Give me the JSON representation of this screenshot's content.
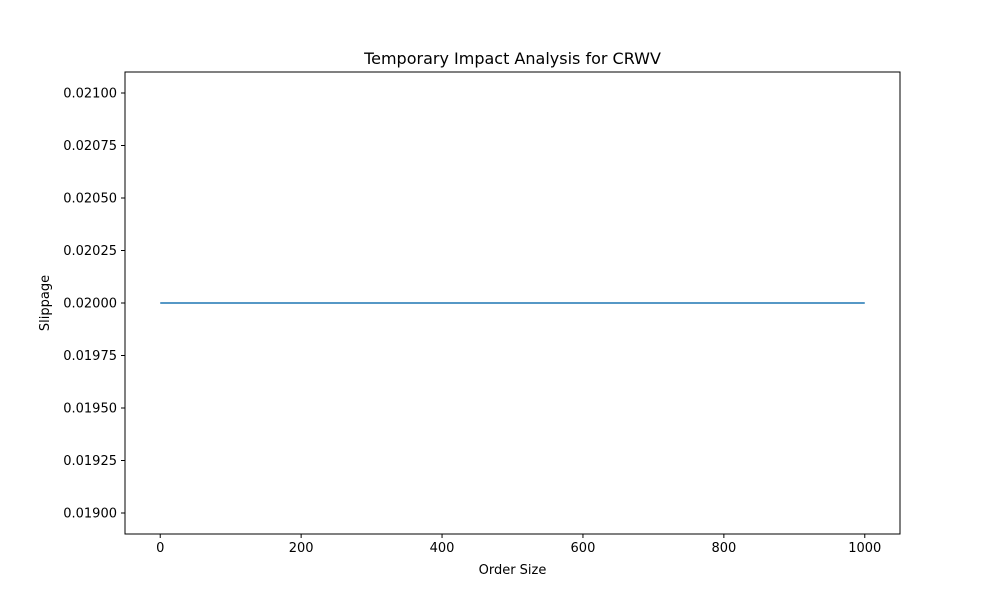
{
  "chart_data": {
    "type": "line",
    "title": "Temporary Impact Analysis for CRWV",
    "xlabel": "Order Size",
    "ylabel": "Slippage",
    "xlim": [
      -50,
      1050
    ],
    "ylim": [
      0.0189,
      0.0211
    ],
    "x_ticks": [
      0,
      200,
      400,
      600,
      800,
      1000
    ],
    "x_tick_labels": [
      "0",
      "200",
      "400",
      "600",
      "800",
      "1000"
    ],
    "y_ticks": [
      0.019,
      0.01925,
      0.0195,
      0.01975,
      0.02,
      0.02025,
      0.0205,
      0.02075,
      0.021
    ],
    "y_tick_labels": [
      "0.01900",
      "0.01925",
      "0.01950",
      "0.01975",
      "0.02000",
      "0.02025",
      "0.02050",
      "0.02075",
      "0.02100"
    ],
    "grid": false,
    "series": [
      {
        "color": "#1f77b4",
        "x": [
          0,
          1000
        ],
        "y": [
          0.02,
          0.02
        ]
      }
    ]
  }
}
